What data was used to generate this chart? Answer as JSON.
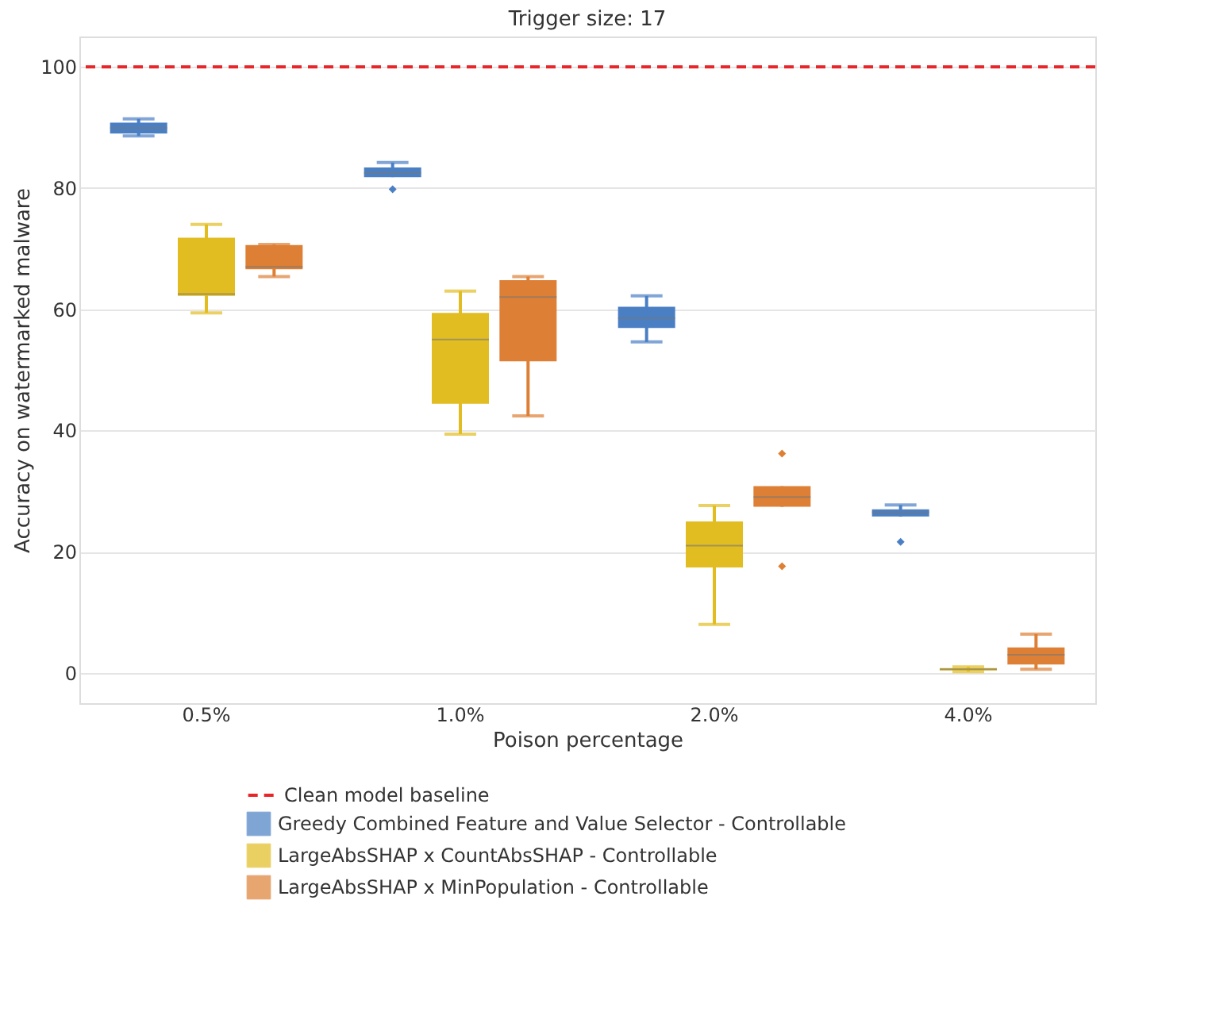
{
  "chart_data": {
    "type": "box",
    "title": "Trigger size: 17",
    "xlabel": "Poison percentage",
    "ylabel": "Accuracy on watermarked malware",
    "categories": [
      "0.5%",
      "1.0%",
      "2.0%",
      "4.0%"
    ],
    "ylim": [
      -5,
      105
    ],
    "yticks": [
      0,
      20,
      40,
      60,
      80,
      100
    ],
    "grid": "y",
    "legend": "bottom",
    "ref_lines": [
      {
        "axis": "y",
        "value": 100,
        "label": "Clean model baseline",
        "color": "#e8262a",
        "line_style": "dashed"
      }
    ],
    "series": [
      {
        "name": "Greedy Combined Feature and Value Selector - Controllable",
        "color": "#4a7fc4",
        "boxes": [
          {
            "low": 88.6,
            "q1": 89.0,
            "median": 89.9,
            "q3": 90.8,
            "high": 91.4
          },
          {
            "low": 81.8,
            "q1": 81.8,
            "median": 82.5,
            "q3": 83.4,
            "high": 84.2,
            "outliers": [
              79.8
            ]
          },
          {
            "low": 54.6,
            "q1": 56.9,
            "median": 58.5,
            "q3": 60.4,
            "high": 62.2
          },
          {
            "low": 25.8,
            "q1": 25.8,
            "median": 26.5,
            "q3": 27.0,
            "high": 27.7,
            "outliers": [
              21.6
            ]
          }
        ]
      },
      {
        "name": "LargeAbsSHAP x CountAbsSHAP - Controllable",
        "color": "#e2bd22",
        "boxes": [
          {
            "low": 59.4,
            "q1": 62.2,
            "median": 62.5,
            "q3": 71.8,
            "high": 74.0
          },
          {
            "low": 39.4,
            "q1": 44.4,
            "median": 55.0,
            "q3": 59.4,
            "high": 63.0
          },
          {
            "low": 8.0,
            "q1": 17.4,
            "median": 21.0,
            "q3": 25.0,
            "high": 27.6
          },
          {
            "low": 0.2,
            "q1": 0.4,
            "median": 0.6,
            "q3": 0.8,
            "high": 1.0
          }
        ]
      },
      {
        "name": "LargeAbsSHAP x MinPopulation - Controllable",
        "color": "#dd7f35",
        "boxes": [
          {
            "low": 65.4,
            "q1": 66.6,
            "median": 67.0,
            "q3": 70.6,
            "high": 70.7
          },
          {
            "low": 42.4,
            "q1": 51.4,
            "median": 62.0,
            "q3": 64.8,
            "high": 65.4
          },
          {
            "low": 27.4,
            "q1": 27.4,
            "median": 29.0,
            "q3": 30.8,
            "high": 30.8,
            "outliers": [
              36.2,
              17.6
            ]
          },
          {
            "low": 0.6,
            "q1": 1.4,
            "median": 3.0,
            "q3": 4.2,
            "high": 6.4
          }
        ]
      }
    ]
  }
}
